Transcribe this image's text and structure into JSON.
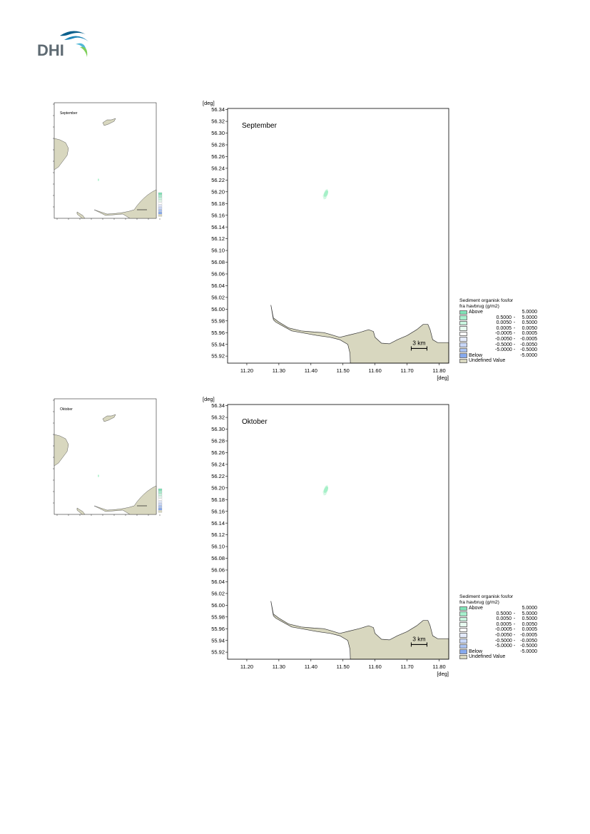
{
  "brand": {
    "name": "DHI"
  },
  "colors": {
    "land": "#d8d7bf",
    "land_stroke": "#333333",
    "plume": "#a6f0c8",
    "plume_light": "#d4f7e4"
  },
  "axes": {
    "x_unit": "[deg]",
    "y_unit": "[deg]",
    "x_ticks": [
      "11.20",
      "11.30",
      "11.40",
      "11.50",
      "11.60",
      "11.70",
      "11.80"
    ],
    "y_ticks": [
      "56.34",
      "56.32",
      "56.30",
      "56.28",
      "56.26",
      "56.24",
      "56.22",
      "56.20",
      "56.18",
      "56.16",
      "56.14",
      "56.12",
      "56.10",
      "56.08",
      "56.06",
      "56.04",
      "56.02",
      "56.00",
      "55.98",
      "55.96",
      "55.94",
      "55.92"
    ]
  },
  "scale_bar": "3 km",
  "legend": {
    "title_line1": "Sediment organisk fosfor",
    "title_line2": "fra havbrug (g/m2)",
    "items": [
      {
        "label": "Above",
        "from": "5.0000",
        "to": "",
        "color": "#7fe3b7"
      },
      {
        "label": "",
        "from": "0.5000",
        "to": "5.0000",
        "color": "#a6efcc"
      },
      {
        "label": "",
        "from": "0.0050",
        "to": "0.5000",
        "color": "#c8f5df"
      },
      {
        "label": "",
        "from": "0.0005",
        "to": "0.0050",
        "color": "#e7fbf0"
      },
      {
        "label": "",
        "from": "-0.0005",
        "to": "0.0005",
        "color": "#ffffff"
      },
      {
        "label": "",
        "from": "-0.0050",
        "to": "-0.0005",
        "color": "#e3eafc"
      },
      {
        "label": "",
        "from": "-0.5000",
        "to": "-0.0050",
        "color": "#c7d6f7"
      },
      {
        "label": "",
        "from": "-5.0000",
        "to": "-0.5000",
        "color": "#a9c2f2"
      },
      {
        "label": "Below",
        "from": "-5.0000",
        "to": "",
        "color": "#86a9ee"
      }
    ],
    "undefined_label": "Undefined Value"
  },
  "panels": [
    {
      "month": "September"
    },
    {
      "month": "Oktober"
    }
  ]
}
